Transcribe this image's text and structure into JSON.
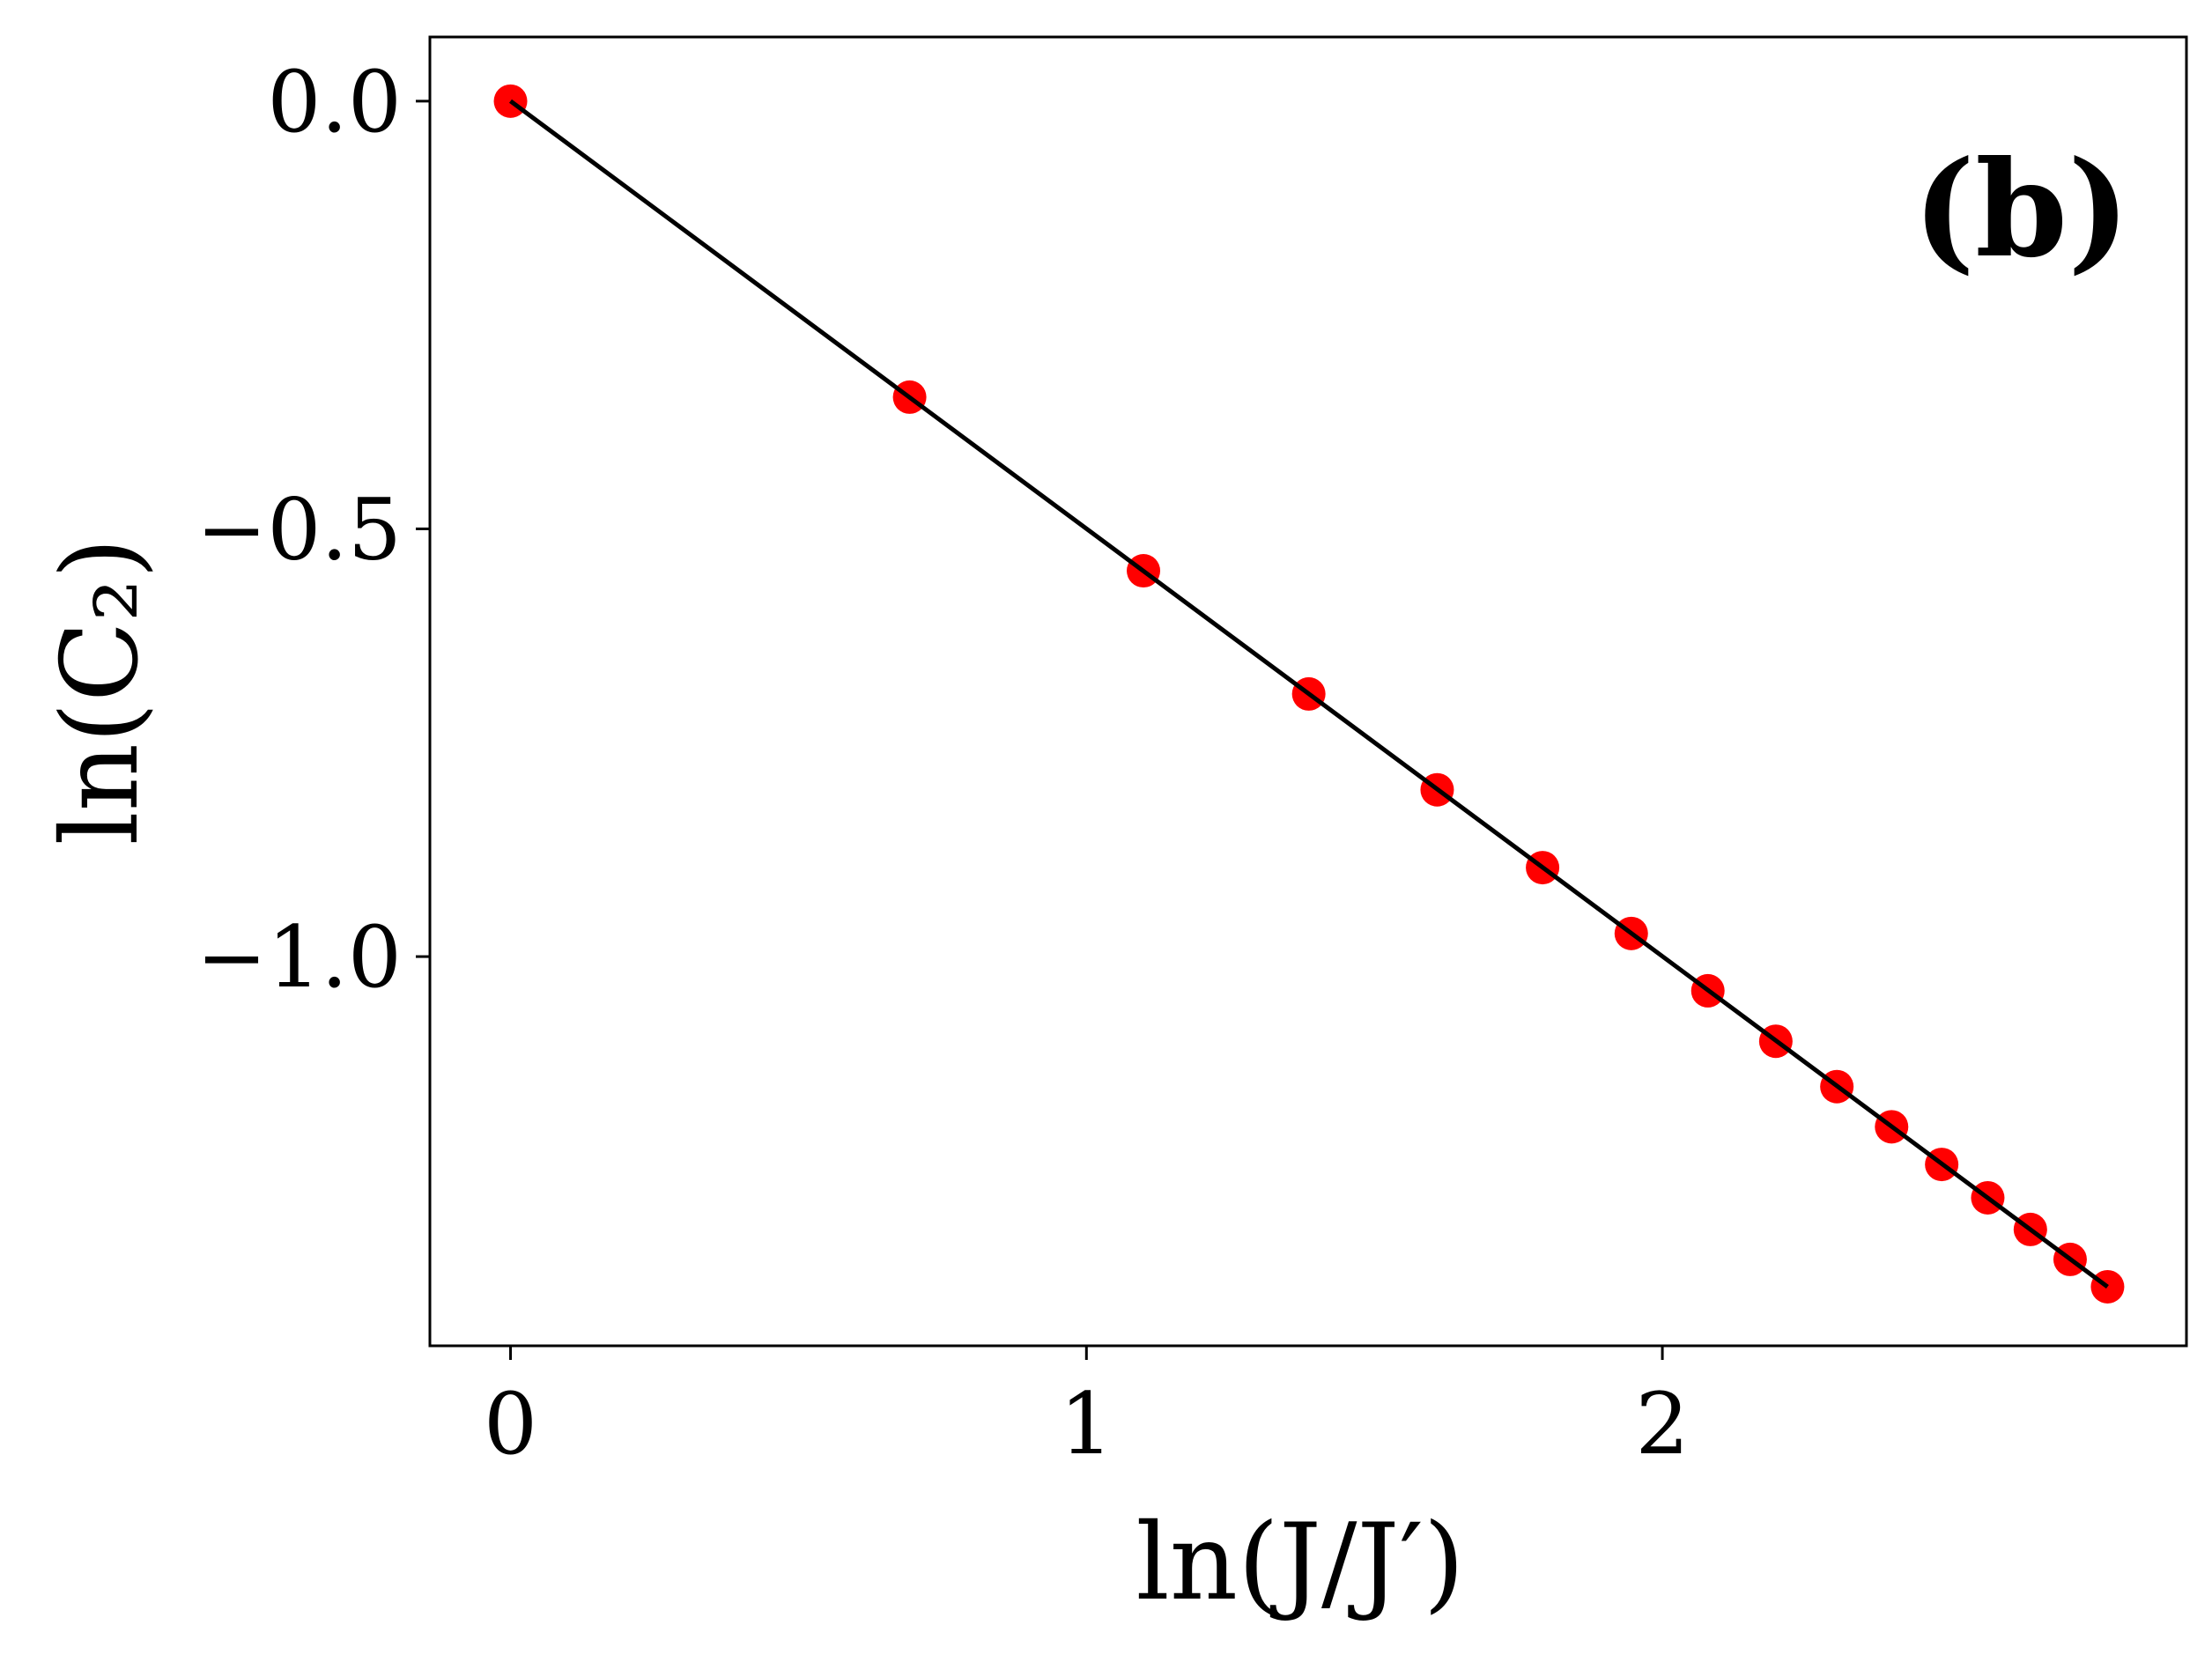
{
  "chart_data": {
    "type": "scatter",
    "panel_label": "(b)",
    "xlabel": "ln(J/J′)",
    "ylabel": "ln(C₂)",
    "xlim": [
      -0.14,
      2.91
    ],
    "ylim": [
      -1.455,
      0.075
    ],
    "xticks": [
      0,
      1,
      2
    ],
    "xtick_labels": [
      "0",
      "1",
      "2"
    ],
    "yticks": [
      0.0,
      -0.5,
      -1.0
    ],
    "ytick_labels": [
      "0.0",
      "−0.5",
      "−1.0"
    ],
    "grid": false,
    "legend": "none",
    "series": [
      {
        "kind": "points",
        "color": "#ff0000",
        "x": [
          0.0,
          0.693,
          1.099,
          1.386,
          1.609,
          1.792,
          1.946,
          2.079,
          2.197,
          2.303,
          2.398,
          2.485,
          2.565,
          2.639,
          2.708,
          2.773
        ],
        "y": [
          0.0,
          -0.346,
          -0.549,
          -0.693,
          -0.805,
          -0.896,
          -0.973,
          -1.04,
          -1.099,
          -1.152,
          -1.199,
          -1.243,
          -1.282,
          -1.319,
          -1.354,
          -1.386
        ]
      },
      {
        "kind": "line",
        "color": "#000000",
        "x": [
          0.0,
          2.773
        ],
        "y": [
          0.0,
          -1.386
        ]
      }
    ]
  }
}
